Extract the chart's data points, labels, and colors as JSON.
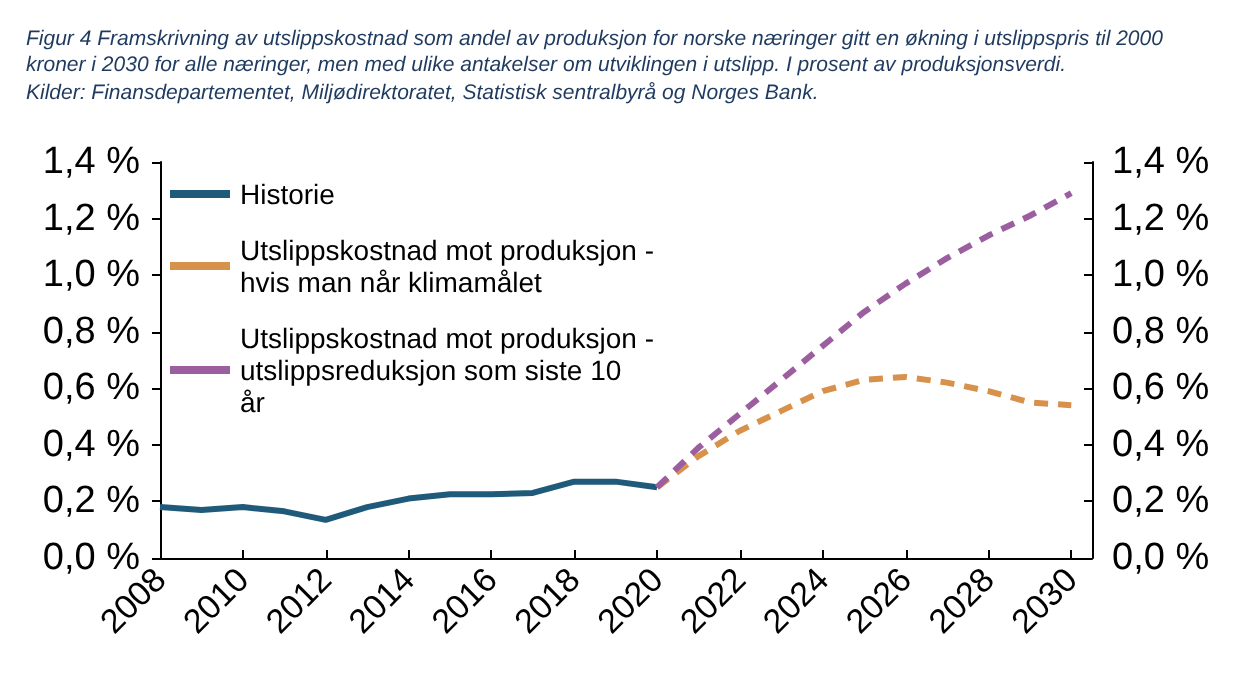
{
  "chart_data": {
    "type": "line",
    "title": "Figur 4 Framskrivning av utslippskostnad som andel av produksjon for norske næringer gitt en økning i utslippspris til 2000 kroner i 2030 for alle næringer, men med ulike antakelser om utviklingen i utslipp. I prosent av produksjonsverdi.",
    "subtitle": "Kilder: Finansdepartementet, Miljødirektoratet, Statistisk sentralbyrå og Norges Bank.",
    "series": [
      {
        "name": "Historie",
        "color": "#1f5a7a",
        "line_style": "solid",
        "x": [
          2008,
          2009,
          2010,
          2011,
          2012,
          2013,
          2014,
          2015,
          2016,
          2017,
          2018,
          2019,
          2020
        ],
        "values": [
          0.18,
          0.17,
          0.18,
          0.165,
          0.135,
          0.18,
          0.21,
          0.225,
          0.225,
          0.23,
          0.27,
          0.27,
          0.25
        ]
      },
      {
        "name": "Utslippskostnad mot produksjon - hvis man når klimamålet",
        "color": "#d8914a",
        "line_style": "dashed",
        "x": [
          2020,
          2021,
          2022,
          2023,
          2024,
          2025,
          2026,
          2027,
          2028,
          2029,
          2030
        ],
        "values": [
          0.25,
          0.36,
          0.45,
          0.52,
          0.59,
          0.63,
          0.64,
          0.62,
          0.59,
          0.55,
          0.54
        ]
      },
      {
        "name": "Utslippskostnad mot produksjon - utslippsreduksjon som siste 10 år",
        "color": "#9b5fa0",
        "line_style": "dashed",
        "x": [
          2020,
          2021,
          2022,
          2023,
          2024,
          2025,
          2026,
          2027,
          2028,
          2029,
          2030
        ],
        "values": [
          0.25,
          0.39,
          0.51,
          0.63,
          0.75,
          0.87,
          0.97,
          1.06,
          1.14,
          1.21,
          1.29
        ]
      }
    ],
    "xlim": [
      2008,
      2030.5
    ],
    "xticks": [
      2008,
      2010,
      2012,
      2014,
      2016,
      2018,
      2020,
      2022,
      2024,
      2026,
      2028,
      2030
    ],
    "ylim": [
      0,
      1.4
    ],
    "yticks": [
      {
        "value": 0,
        "label": "0,0 %"
      },
      {
        "value": 0.2,
        "label": "0,2 %"
      },
      {
        "value": 0.4,
        "label": "0,4 %"
      },
      {
        "value": 0.6,
        "label": "0,6 %"
      },
      {
        "value": 0.8,
        "label": "0,8 %"
      },
      {
        "value": 1.0,
        "label": "1,0 %"
      },
      {
        "value": 1.2,
        "label": "1,2 %"
      },
      {
        "value": 1.4,
        "label": "1,4 %"
      }
    ],
    "y2lim": [
      0,
      1.4
    ],
    "y2ticks": [
      {
        "value": 0,
        "label": "0,0 %"
      },
      {
        "value": 0.2,
        "label": "0,2 %"
      },
      {
        "value": 0.4,
        "label": "0,4 %"
      },
      {
        "value": 0.6,
        "label": "0,6 %"
      },
      {
        "value": 0.8,
        "label": "0,8 %"
      },
      {
        "value": 1.0,
        "label": "1,0 %"
      },
      {
        "value": 1.2,
        "label": "1,2 %"
      },
      {
        "value": 1.4,
        "label": "1,4 %"
      }
    ],
    "legend": "top left",
    "grid": false,
    "marker": "none"
  }
}
